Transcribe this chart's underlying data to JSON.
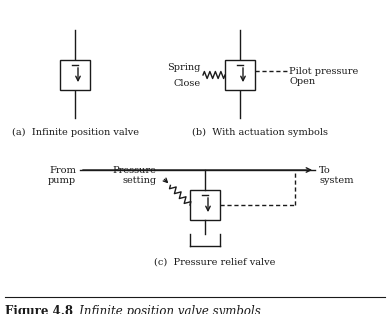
{
  "title": "Figure 4.8",
  "title_italic": "   Infinite position valve symbols",
  "label_a": "(a)  Infinite position valve",
  "label_b": "(b)  With actuation symbols",
  "label_c": "(c)  Pressure relief valve",
  "spring_label": "Spring",
  "close_label": "Close",
  "pilot_label": "Pilot pressure",
  "open_label": "Open",
  "from_pump": "From\npump",
  "to_system": "To\nsystem",
  "pressure_setting": "Pressure\nsetting",
  "bg_color": "#ffffff",
  "line_color": "#1a1a1a"
}
